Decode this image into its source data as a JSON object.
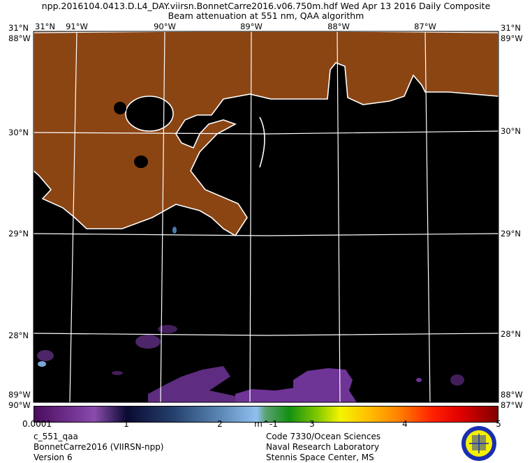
{
  "header": {
    "title": "npp.2016104.0413.D.L4_DAY.viirsn.BonnetCarre2016.v06.750m.hdf    Wed Apr 13 2016 Daily Composite",
    "subtitle": "Beam attenuation at 551 nm, QAA algorithm"
  },
  "map": {
    "top_labels": [
      "31°N",
      "91°W",
      "90°W",
      "89°W",
      "88°W",
      "87°W"
    ],
    "left_labels": [
      "31°N",
      "88°W",
      "30°N",
      "29°N",
      "28°N",
      "89°W",
      "90°W"
    ],
    "right_labels": [
      "31°N",
      "89°W",
      "30°N",
      "29°N",
      "28°N",
      "88°W",
      "87°W"
    ],
    "colors": {
      "land": "#8b4513",
      "water": "#000000",
      "coast": "#ffffff",
      "grid": "#ffffff",
      "low_value": "#6e3496"
    }
  },
  "colorbar": {
    "ticks": [
      "0.0001",
      "1",
      "2",
      "3",
      "4",
      "5"
    ],
    "units": "m^-1",
    "range": [
      0.0001,
      5
    ]
  },
  "footer": {
    "left": [
      "c_551_qaa",
      "BonnetCarre2016 (VIIRSN-npp)",
      "Version 6"
    ],
    "right": [
      "Code 7330/Ocean Sciences",
      "Naval Research Laboratory",
      "Stennis Space Center, MS"
    ],
    "logo": "Naval Research Laboratory seal"
  }
}
